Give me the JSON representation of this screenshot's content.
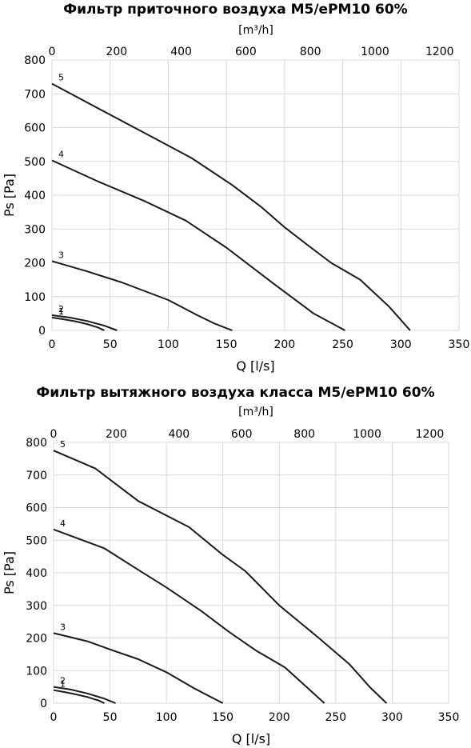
{
  "chart_data": [
    {
      "type": "line",
      "title": "Фильтр приточного воздуха M5/ePM10 60%",
      "xlabel": "Q [l/s]",
      "ylabel": "Ps [Pa]",
      "x2label": "[m³/h]",
      "xlim": [
        0,
        350
      ],
      "ylim": [
        0,
        800
      ],
      "x2lim": [
        0,
        1260
      ],
      "xticks": [
        0,
        50,
        100,
        150,
        200,
        250,
        300,
        350
      ],
      "yticks": [
        0,
        100,
        200,
        300,
        400,
        500,
        600,
        700,
        800
      ],
      "x2ticks": [
        0,
        200,
        400,
        600,
        800,
        1000,
        1200
      ],
      "grid": true,
      "series": [
        {
          "name": "1",
          "x": [
            0,
            10,
            20,
            30,
            40,
            45
          ],
          "y": [
            38,
            33,
            27,
            19,
            8,
            0
          ]
        },
        {
          "name": "2",
          "x": [
            0,
            15,
            30,
            45,
            56
          ],
          "y": [
            45,
            38,
            28,
            14,
            0
          ]
        },
        {
          "name": "3",
          "x": [
            0,
            30,
            60,
            100,
            125,
            140,
            155
          ],
          "y": [
            205,
            175,
            142,
            90,
            45,
            20,
            0
          ]
        },
        {
          "name": "4",
          "x": [
            0,
            40,
            80,
            115,
            150,
            190,
            225,
            252
          ],
          "y": [
            503,
            440,
            382,
            325,
            245,
            140,
            50,
            0
          ]
        },
        {
          "name": "5",
          "x": [
            0,
            50,
            90,
            120,
            155,
            180,
            200,
            220,
            240,
            265,
            290,
            308
          ],
          "y": [
            730,
            638,
            565,
            510,
            430,
            365,
            305,
            252,
            200,
            150,
            70,
            0
          ]
        }
      ]
    },
    {
      "type": "line",
      "title": "Фильтр вытяжного воздуха класса M5/ePM10 60%",
      "xlabel": "Q [l/s]",
      "ylabel": "Ps [Pa]",
      "x2label": "[m³/h]",
      "xlim": [
        0,
        350
      ],
      "ylim": [
        0,
        800
      ],
      "x2lim": [
        0,
        1260
      ],
      "xticks": [
        0,
        50,
        100,
        150,
        200,
        250,
        300,
        350
      ],
      "yticks": [
        0,
        100,
        200,
        300,
        400,
        500,
        600,
        700,
        800
      ],
      "x2ticks": [
        0,
        200,
        400,
        600,
        800,
        1000,
        1200
      ],
      "grid": true,
      "series": [
        {
          "name": "1",
          "x": [
            0,
            10,
            20,
            30,
            40,
            45
          ],
          "y": [
            40,
            34,
            27,
            19,
            8,
            0
          ]
        },
        {
          "name": "2",
          "x": [
            0,
            15,
            30,
            45,
            55
          ],
          "y": [
            50,
            42,
            30,
            14,
            0
          ]
        },
        {
          "name": "3",
          "x": [
            0,
            30,
            50,
            75,
            100,
            125,
            150
          ],
          "y": [
            215,
            190,
            165,
            135,
            95,
            45,
            0
          ]
        },
        {
          "name": "4",
          "x": [
            0,
            45,
            70,
            100,
            130,
            155,
            180,
            205,
            240
          ],
          "y": [
            533,
            475,
            420,
            355,
            285,
            220,
            160,
            110,
            0
          ]
        },
        {
          "name": "5",
          "x": [
            0,
            37,
            75,
            120,
            150,
            170,
            200,
            235,
            262,
            280,
            295
          ],
          "y": [
            775,
            720,
            620,
            540,
            455,
            405,
            300,
            200,
            120,
            50,
            0
          ]
        }
      ]
    }
  ]
}
